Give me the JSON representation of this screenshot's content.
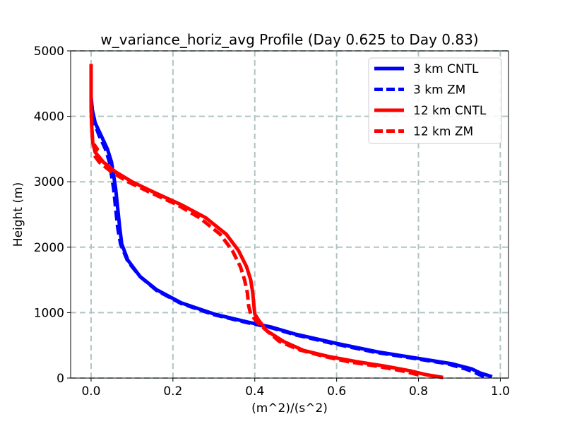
{
  "chart_data": {
    "type": "line",
    "title": "w_variance_horiz_avg Profile (Day 0.625 to Day 0.83)",
    "xlabel": "(m^2)/(s^2)",
    "ylabel": "Height (m)",
    "xlim": [
      -0.05,
      1.02
    ],
    "ylim": [
      0,
      5000
    ],
    "xticks": [
      0.0,
      0.2,
      0.4,
      0.6,
      0.8,
      1.0
    ],
    "xtick_labels": [
      "0.0",
      "0.2",
      "0.4",
      "0.6",
      "0.8",
      "1.0"
    ],
    "yticks": [
      0,
      1000,
      2000,
      3000,
      4000,
      5000
    ],
    "ytick_labels": [
      "0",
      "1000",
      "2000",
      "3000",
      "4000",
      "5000"
    ],
    "grid": true,
    "legend_position": "top-right",
    "series": [
      {
        "name": "3 km CNTL",
        "color": "#0000ff",
        "dash": "solid",
        "points": [
          [
            0.98,
            20
          ],
          [
            0.95,
            80
          ],
          [
            0.93,
            140
          ],
          [
            0.88,
            220
          ],
          [
            0.8,
            300
          ],
          [
            0.7,
            400
          ],
          [
            0.6,
            530
          ],
          [
            0.5,
            670
          ],
          [
            0.44,
            780
          ],
          [
            0.38,
            860
          ],
          [
            0.3,
            980
          ],
          [
            0.22,
            1150
          ],
          [
            0.16,
            1350
          ],
          [
            0.12,
            1550
          ],
          [
            0.09,
            1800
          ],
          [
            0.075,
            2050
          ],
          [
            0.07,
            2300
          ],
          [
            0.065,
            2600
          ],
          [
            0.06,
            2900
          ],
          [
            0.055,
            3100
          ],
          [
            0.05,
            3300
          ],
          [
            0.04,
            3500
          ],
          [
            0.025,
            3700
          ],
          [
            0.01,
            3900
          ],
          [
            0.003,
            4100
          ],
          [
            0.0,
            4300
          ],
          [
            0.0,
            4800
          ]
        ]
      },
      {
        "name": "3 km ZM",
        "color": "#0000ff",
        "dash": "dashed",
        "points": [
          [
            0.96,
            20
          ],
          [
            0.94,
            80
          ],
          [
            0.915,
            140
          ],
          [
            0.87,
            220
          ],
          [
            0.79,
            300
          ],
          [
            0.69,
            400
          ],
          [
            0.59,
            530
          ],
          [
            0.5,
            660
          ],
          [
            0.44,
            770
          ],
          [
            0.38,
            850
          ],
          [
            0.3,
            970
          ],
          [
            0.22,
            1140
          ],
          [
            0.16,
            1340
          ],
          [
            0.12,
            1550
          ],
          [
            0.09,
            1780
          ],
          [
            0.072,
            2050
          ],
          [
            0.065,
            2300
          ],
          [
            0.06,
            2600
          ],
          [
            0.055,
            2900
          ],
          [
            0.05,
            3100
          ],
          [
            0.045,
            3300
          ],
          [
            0.035,
            3500
          ],
          [
            0.02,
            3700
          ],
          [
            0.008,
            3900
          ],
          [
            0.002,
            4100
          ],
          [
            0.0,
            4300
          ],
          [
            0.0,
            4800
          ]
        ]
      },
      {
        "name": "12 km CNTL",
        "color": "#ff0000",
        "dash": "solid",
        "points": [
          [
            0.86,
            10
          ],
          [
            0.82,
            50
          ],
          [
            0.78,
            110
          ],
          [
            0.72,
            180
          ],
          [
            0.65,
            250
          ],
          [
            0.58,
            330
          ],
          [
            0.52,
            420
          ],
          [
            0.47,
            560
          ],
          [
            0.43,
            720
          ],
          [
            0.41,
            880
          ],
          [
            0.4,
            980
          ],
          [
            0.398,
            1100
          ],
          [
            0.395,
            1300
          ],
          [
            0.39,
            1500
          ],
          [
            0.38,
            1700
          ],
          [
            0.36,
            1950
          ],
          [
            0.33,
            2200
          ],
          [
            0.28,
            2450
          ],
          [
            0.22,
            2650
          ],
          [
            0.15,
            2850
          ],
          [
            0.1,
            3000
          ],
          [
            0.06,
            3150
          ],
          [
            0.03,
            3300
          ],
          [
            0.01,
            3450
          ],
          [
            0.004,
            3600
          ],
          [
            0.002,
            3800
          ],
          [
            0.0,
            4100
          ],
          [
            0.0,
            4800
          ]
        ]
      },
      {
        "name": "12 km ZM",
        "color": "#ff0000",
        "dash": "dashed",
        "points": [
          [
            0.8,
            50
          ],
          [
            0.76,
            110
          ],
          [
            0.7,
            180
          ],
          [
            0.63,
            250
          ],
          [
            0.57,
            330
          ],
          [
            0.51,
            430
          ],
          [
            0.46,
            560
          ],
          [
            0.43,
            720
          ],
          [
            0.405,
            860
          ],
          [
            0.39,
            980
          ],
          [
            0.385,
            1100
          ],
          [
            0.382,
            1300
          ],
          [
            0.375,
            1500
          ],
          [
            0.365,
            1700
          ],
          [
            0.345,
            1950
          ],
          [
            0.315,
            2200
          ],
          [
            0.265,
            2450
          ],
          [
            0.21,
            2650
          ],
          [
            0.14,
            2850
          ],
          [
            0.09,
            3000
          ],
          [
            0.05,
            3150
          ],
          [
            0.02,
            3300
          ],
          [
            0.006,
            3420
          ],
          [
            0.015,
            3500
          ],
          [
            0.004,
            3600
          ],
          [
            0.002,
            3800
          ],
          [
            0.0,
            4100
          ],
          [
            0.0,
            4800
          ]
        ]
      }
    ]
  }
}
